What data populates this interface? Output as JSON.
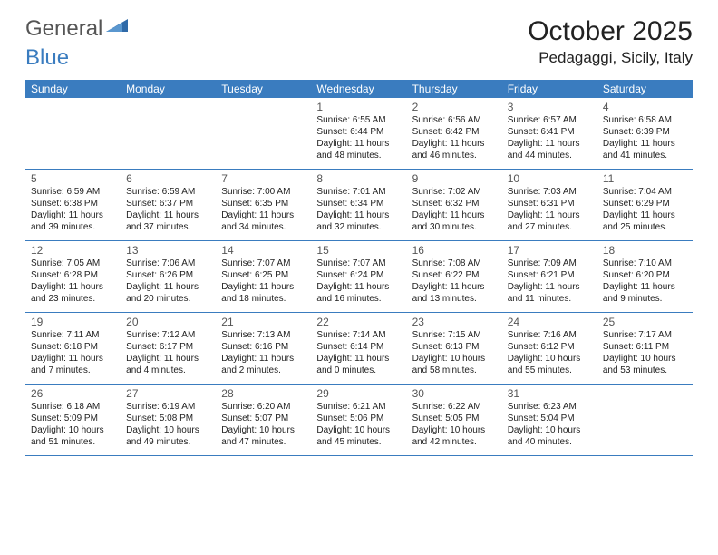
{
  "logo": {
    "text1": "General",
    "text2": "Blue"
  },
  "title": "October 2025",
  "location": "Pedagaggi, Sicily, Italy",
  "header_color": "#3a7cbf",
  "text_color": "#222222",
  "daynum_color": "#555555",
  "day_names": [
    "Sunday",
    "Monday",
    "Tuesday",
    "Wednesday",
    "Thursday",
    "Friday",
    "Saturday"
  ],
  "weeks": [
    [
      {
        "n": "",
        "sr": "",
        "ss": "",
        "dl1": "",
        "dl2": ""
      },
      {
        "n": "",
        "sr": "",
        "ss": "",
        "dl1": "",
        "dl2": ""
      },
      {
        "n": "",
        "sr": "",
        "ss": "",
        "dl1": "",
        "dl2": ""
      },
      {
        "n": "1",
        "sr": "Sunrise: 6:55 AM",
        "ss": "Sunset: 6:44 PM",
        "dl1": "Daylight: 11 hours",
        "dl2": "and 48 minutes."
      },
      {
        "n": "2",
        "sr": "Sunrise: 6:56 AM",
        "ss": "Sunset: 6:42 PM",
        "dl1": "Daylight: 11 hours",
        "dl2": "and 46 minutes."
      },
      {
        "n": "3",
        "sr": "Sunrise: 6:57 AM",
        "ss": "Sunset: 6:41 PM",
        "dl1": "Daylight: 11 hours",
        "dl2": "and 44 minutes."
      },
      {
        "n": "4",
        "sr": "Sunrise: 6:58 AM",
        "ss": "Sunset: 6:39 PM",
        "dl1": "Daylight: 11 hours",
        "dl2": "and 41 minutes."
      }
    ],
    [
      {
        "n": "5",
        "sr": "Sunrise: 6:59 AM",
        "ss": "Sunset: 6:38 PM",
        "dl1": "Daylight: 11 hours",
        "dl2": "and 39 minutes."
      },
      {
        "n": "6",
        "sr": "Sunrise: 6:59 AM",
        "ss": "Sunset: 6:37 PM",
        "dl1": "Daylight: 11 hours",
        "dl2": "and 37 minutes."
      },
      {
        "n": "7",
        "sr": "Sunrise: 7:00 AM",
        "ss": "Sunset: 6:35 PM",
        "dl1": "Daylight: 11 hours",
        "dl2": "and 34 minutes."
      },
      {
        "n": "8",
        "sr": "Sunrise: 7:01 AM",
        "ss": "Sunset: 6:34 PM",
        "dl1": "Daylight: 11 hours",
        "dl2": "and 32 minutes."
      },
      {
        "n": "9",
        "sr": "Sunrise: 7:02 AM",
        "ss": "Sunset: 6:32 PM",
        "dl1": "Daylight: 11 hours",
        "dl2": "and 30 minutes."
      },
      {
        "n": "10",
        "sr": "Sunrise: 7:03 AM",
        "ss": "Sunset: 6:31 PM",
        "dl1": "Daylight: 11 hours",
        "dl2": "and 27 minutes."
      },
      {
        "n": "11",
        "sr": "Sunrise: 7:04 AM",
        "ss": "Sunset: 6:29 PM",
        "dl1": "Daylight: 11 hours",
        "dl2": "and 25 minutes."
      }
    ],
    [
      {
        "n": "12",
        "sr": "Sunrise: 7:05 AM",
        "ss": "Sunset: 6:28 PM",
        "dl1": "Daylight: 11 hours",
        "dl2": "and 23 minutes."
      },
      {
        "n": "13",
        "sr": "Sunrise: 7:06 AM",
        "ss": "Sunset: 6:26 PM",
        "dl1": "Daylight: 11 hours",
        "dl2": "and 20 minutes."
      },
      {
        "n": "14",
        "sr": "Sunrise: 7:07 AM",
        "ss": "Sunset: 6:25 PM",
        "dl1": "Daylight: 11 hours",
        "dl2": "and 18 minutes."
      },
      {
        "n": "15",
        "sr": "Sunrise: 7:07 AM",
        "ss": "Sunset: 6:24 PM",
        "dl1": "Daylight: 11 hours",
        "dl2": "and 16 minutes."
      },
      {
        "n": "16",
        "sr": "Sunrise: 7:08 AM",
        "ss": "Sunset: 6:22 PM",
        "dl1": "Daylight: 11 hours",
        "dl2": "and 13 minutes."
      },
      {
        "n": "17",
        "sr": "Sunrise: 7:09 AM",
        "ss": "Sunset: 6:21 PM",
        "dl1": "Daylight: 11 hours",
        "dl2": "and 11 minutes."
      },
      {
        "n": "18",
        "sr": "Sunrise: 7:10 AM",
        "ss": "Sunset: 6:20 PM",
        "dl1": "Daylight: 11 hours",
        "dl2": "and 9 minutes."
      }
    ],
    [
      {
        "n": "19",
        "sr": "Sunrise: 7:11 AM",
        "ss": "Sunset: 6:18 PM",
        "dl1": "Daylight: 11 hours",
        "dl2": "and 7 minutes."
      },
      {
        "n": "20",
        "sr": "Sunrise: 7:12 AM",
        "ss": "Sunset: 6:17 PM",
        "dl1": "Daylight: 11 hours",
        "dl2": "and 4 minutes."
      },
      {
        "n": "21",
        "sr": "Sunrise: 7:13 AM",
        "ss": "Sunset: 6:16 PM",
        "dl1": "Daylight: 11 hours",
        "dl2": "and 2 minutes."
      },
      {
        "n": "22",
        "sr": "Sunrise: 7:14 AM",
        "ss": "Sunset: 6:14 PM",
        "dl1": "Daylight: 11 hours",
        "dl2": "and 0 minutes."
      },
      {
        "n": "23",
        "sr": "Sunrise: 7:15 AM",
        "ss": "Sunset: 6:13 PM",
        "dl1": "Daylight: 10 hours",
        "dl2": "and 58 minutes."
      },
      {
        "n": "24",
        "sr": "Sunrise: 7:16 AM",
        "ss": "Sunset: 6:12 PM",
        "dl1": "Daylight: 10 hours",
        "dl2": "and 55 minutes."
      },
      {
        "n": "25",
        "sr": "Sunrise: 7:17 AM",
        "ss": "Sunset: 6:11 PM",
        "dl1": "Daylight: 10 hours",
        "dl2": "and 53 minutes."
      }
    ],
    [
      {
        "n": "26",
        "sr": "Sunrise: 6:18 AM",
        "ss": "Sunset: 5:09 PM",
        "dl1": "Daylight: 10 hours",
        "dl2": "and 51 minutes."
      },
      {
        "n": "27",
        "sr": "Sunrise: 6:19 AM",
        "ss": "Sunset: 5:08 PM",
        "dl1": "Daylight: 10 hours",
        "dl2": "and 49 minutes."
      },
      {
        "n": "28",
        "sr": "Sunrise: 6:20 AM",
        "ss": "Sunset: 5:07 PM",
        "dl1": "Daylight: 10 hours",
        "dl2": "and 47 minutes."
      },
      {
        "n": "29",
        "sr": "Sunrise: 6:21 AM",
        "ss": "Sunset: 5:06 PM",
        "dl1": "Daylight: 10 hours",
        "dl2": "and 45 minutes."
      },
      {
        "n": "30",
        "sr": "Sunrise: 6:22 AM",
        "ss": "Sunset: 5:05 PM",
        "dl1": "Daylight: 10 hours",
        "dl2": "and 42 minutes."
      },
      {
        "n": "31",
        "sr": "Sunrise: 6:23 AM",
        "ss": "Sunset: 5:04 PM",
        "dl1": "Daylight: 10 hours",
        "dl2": "and 40 minutes."
      },
      {
        "n": "",
        "sr": "",
        "ss": "",
        "dl1": "",
        "dl2": ""
      }
    ]
  ]
}
